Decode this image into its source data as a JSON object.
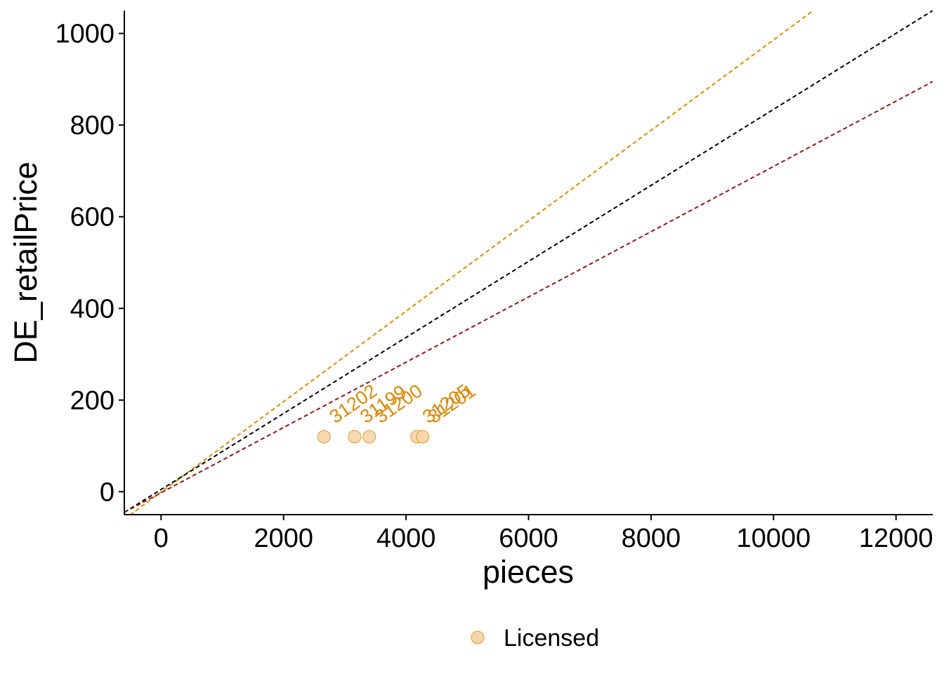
{
  "chart_data": {
    "type": "scatter",
    "xlabel": "pieces",
    "ylabel": "DE_retailPrice",
    "xlim": [
      -600,
      12600
    ],
    "ylim": [
      -50,
      1050
    ],
    "x_ticks": [
      0,
      2000,
      4000,
      6000,
      8000,
      10000,
      12000
    ],
    "y_ticks": [
      0,
      200,
      400,
      600,
      800,
      1000
    ],
    "grid": false,
    "legend_position": "bottom",
    "series": [
      {
        "name": "Licensed",
        "color": "#F5D5A8",
        "stroke": "#E09A2A",
        "label_color": "#D98A0A",
        "points": [
          {
            "x": 2660,
            "y": 120,
            "label": "31202"
          },
          {
            "x": 3160,
            "y": 120,
            "label": "31199"
          },
          {
            "x": 3400,
            "y": 120,
            "label": "31200"
          },
          {
            "x": 4180,
            "y": 120,
            "label": "31205"
          },
          {
            "x": 4270,
            "y": 120,
            "label": "31201"
          }
        ]
      }
    ],
    "reference_lines": [
      {
        "color": "#D4900A",
        "x0": -600,
        "y0": -60,
        "x1": 10650,
        "y1": 1050
      },
      {
        "color": "#000000",
        "x0": -600,
        "y0": -45,
        "x1": 12600,
        "y1": 1050
      },
      {
        "color": "#8B1A1A",
        "x0": -600,
        "y0": -45,
        "x1": 12600,
        "y1": 895
      }
    ]
  }
}
